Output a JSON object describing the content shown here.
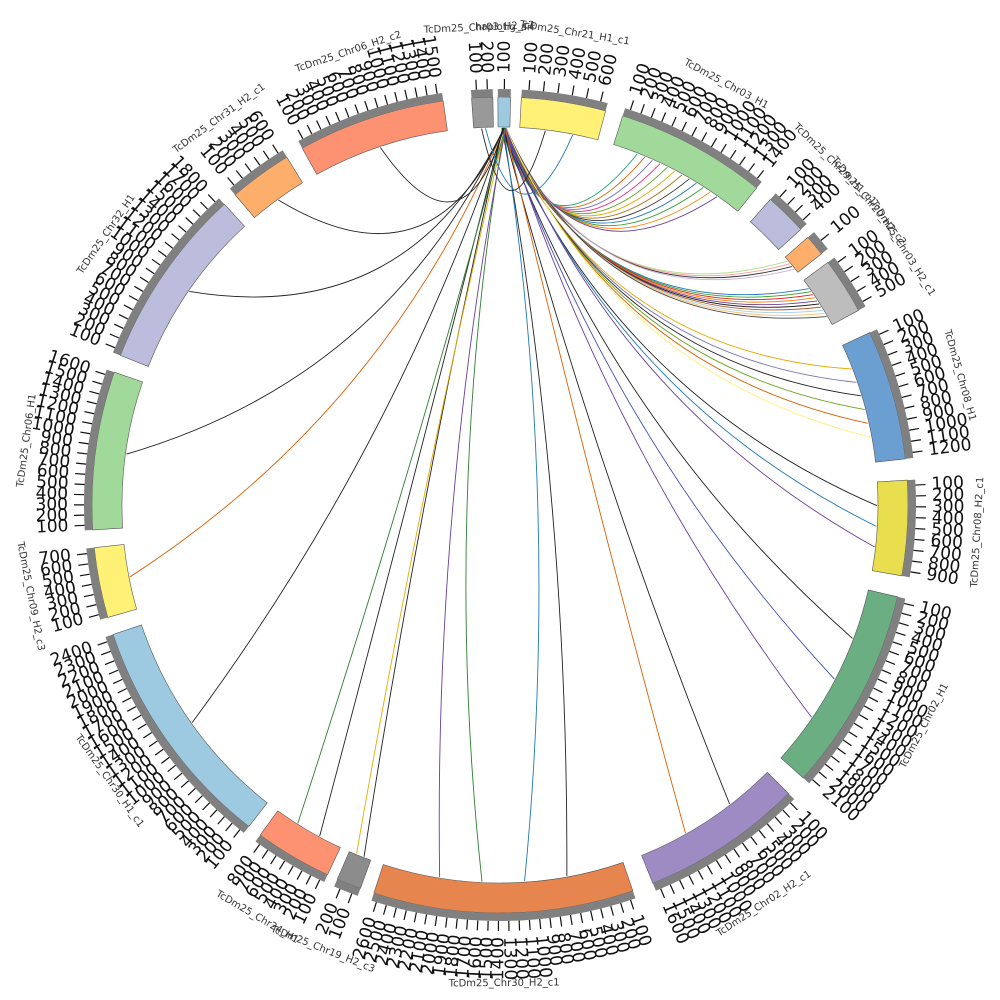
{
  "diagram": {
    "type": "circos",
    "segments": [
      {
        "id": "chr03_h2_c2",
        "label": "TcDm25_Chr03_H2_c2",
        "color": "#999999",
        "ticks": [
          "100",
          "200"
        ]
      },
      {
        "id": "hap_arr",
        "label": "haplotig_arr",
        "color": "#9ECAE1",
        "ticks": [
          "100"
        ]
      },
      {
        "id": "chr21_h1_c1",
        "label": "TcDm25_Chr21_H1_c1",
        "color": "#FFF176",
        "ticks": [
          "100",
          "200",
          "300",
          "400",
          "500",
          "600"
        ]
      },
      {
        "id": "chr03_h1",
        "label": "TcDm25_Chr03_H1",
        "color": "#A1D99B",
        "ticks": [
          "100",
          "200",
          "300",
          "400",
          "500",
          "600",
          "700",
          "800",
          "900",
          "1000",
          "1100",
          "1200",
          "1300",
          "1400"
        ]
      },
      {
        "id": "chr29_h1_c1",
        "label": "TcDm25_Chr29_H1_c1",
        "color": "#BCBDDC",
        "ticks": [
          "100",
          "200",
          "300",
          "400"
        ]
      },
      {
        "id": "chr20_h2_c2",
        "label": "TcDm25_Chr20_H2_c2",
        "color": "#FDAE6B",
        "ticks": [
          "100"
        ]
      },
      {
        "id": "chr03_h2_c1",
        "label": "TcDm25_Chr03_H2_c1",
        "color": "#BDBDBD",
        "ticks": [
          "100",
          "200",
          "300",
          "400",
          "500"
        ]
      },
      {
        "id": "chr08_h1",
        "label": "TcDm25_Chr08_H1",
        "color": "#6B9FD1",
        "ticks": [
          "100",
          "200",
          "300",
          "400",
          "500",
          "600",
          "700",
          "800",
          "900",
          "1000",
          "1100",
          "1200"
        ]
      },
      {
        "id": "chr08_h2_c1",
        "label": "TcDm25_Chr08_H2_c1",
        "color": "#E8DE4E",
        "ticks": [
          "100",
          "200",
          "300",
          "400",
          "500",
          "600",
          "700",
          "800",
          "900"
        ]
      },
      {
        "id": "chr02_h1",
        "label": "TcDm25_Chr02_H1",
        "color": "#6BAE82",
        "ticks": [
          "100",
          "200",
          "300",
          "400",
          "500",
          "600",
          "700",
          "800",
          "900",
          "1000",
          "1100",
          "1200",
          "1300",
          "1400",
          "1500",
          "1600",
          "1700",
          "1800",
          "1900",
          "2000",
          "2100"
        ]
      },
      {
        "id": "chr02_h2_c1",
        "label": "TcDm25_Chr02_H2_c1",
        "color": "#9E8BC4",
        "ticks": [
          "100",
          "200",
          "300",
          "400",
          "500",
          "600",
          "700",
          "800",
          "900",
          "1000",
          "1100",
          "1200",
          "1300",
          "1400",
          "1500",
          "1600"
        ]
      },
      {
        "id": "chr30_h2_c1",
        "label": "TcDm25_Chr30_H2_c1",
        "color": "#E6854E",
        "ticks": [
          "100",
          "200",
          "300",
          "400",
          "500",
          "600",
          "700",
          "800",
          "900",
          "1000",
          "1100",
          "1200",
          "1300",
          "1400",
          "1500",
          "1600",
          "1700",
          "1800",
          "1900",
          "2000",
          "2100",
          "2200",
          "2300",
          "2400",
          "2500",
          "2600"
        ]
      },
      {
        "id": "chr19_h2_c3",
        "label": "TcDm25_Chr19_H2_c3",
        "color": "#8C8C8C",
        "ticks": [
          "100",
          "200"
        ]
      },
      {
        "id": "chr24_h1",
        "label": "TcDm25_Chr24_H1",
        "color": "#FC9272",
        "ticks": [
          "100",
          "200",
          "300",
          "400",
          "500",
          "600",
          "700",
          "800"
        ]
      },
      {
        "id": "chr30_h1_c1",
        "label": "TcDm25_Chr30_H1_c1",
        "color": "#9ECAE1",
        "ticks": [
          "100",
          "200",
          "300",
          "400",
          "500",
          "600",
          "700",
          "800",
          "900",
          "1000",
          "1100",
          "1200",
          "1300",
          "1400",
          "1500",
          "1600",
          "1700",
          "1800",
          "1900",
          "2000",
          "2100",
          "2200",
          "2300",
          "2400"
        ]
      },
      {
        "id": "chr09_h2_c3",
        "label": "TcDm25_Chr09_H2_c3",
        "color": "#FFF176",
        "ticks": [
          "100",
          "200",
          "300",
          "400",
          "500",
          "600",
          "700"
        ]
      },
      {
        "id": "chr06_h1",
        "label": "TcDm25_Chr06_H1",
        "color": "#A1D99B",
        "ticks": [
          "100",
          "200",
          "300",
          "400",
          "500",
          "600",
          "700",
          "800",
          "900",
          "1000",
          "1100",
          "1200",
          "1300",
          "1400",
          "1500",
          "1600"
        ]
      },
      {
        "id": "chr32_h1",
        "label": "TcDm25_Chr32_H1",
        "color": "#BCBDDC",
        "ticks": [
          "100",
          "200",
          "300",
          "400",
          "500",
          "600",
          "700",
          "800",
          "900",
          "1000",
          "1100",
          "1200",
          "1300",
          "1400",
          "1500",
          "1600",
          "1700",
          "1800"
        ]
      },
      {
        "id": "chr31_h2_c1",
        "label": "TcDm25_Chr31_H2_c1",
        "color": "#FDAE6B",
        "ticks": [
          "100",
          "200",
          "300",
          "400",
          "500",
          "600"
        ]
      },
      {
        "id": "chr06_h2_c2",
        "label": "TcDm25_Chr06_H2_c2",
        "color": "#FC9272",
        "ticks": [
          "100",
          "200",
          "300",
          "400",
          "500",
          "600",
          "700",
          "800",
          "900",
          "1000",
          "1100",
          "1200",
          "1300",
          "1400",
          "1500"
        ]
      }
    ],
    "links": [
      {
        "from": "hap_arr",
        "to": "chr03_h1",
        "count": 12,
        "colors": [
          "#1b9e77",
          "#d95f02",
          "#7570b3",
          "#e7298a",
          "#66a61e",
          "#e6ab02",
          "#a6761d",
          "#333333",
          "#1f78b4",
          "#33a02c",
          "#ff7f00",
          "#6a3d9a"
        ]
      },
      {
        "from": "hap_arr",
        "to": "chr20_h2_c2",
        "count": 4,
        "colors": [
          "#b2df8a",
          "#fb9a99",
          "#333333",
          "#cab2d6"
        ]
      },
      {
        "from": "hap_arr",
        "to": "chr03_h2_c1",
        "count": 10,
        "colors": [
          "#1f78b4",
          "#33a02c",
          "#e31a1c",
          "#ff7f00",
          "#6a3d9a",
          "#222222",
          "#b15928",
          "#a6cee3",
          "#fdbf6f",
          "#444444"
        ]
      },
      {
        "from": "hap_arr",
        "to": "chr08_h1",
        "count": 6,
        "colors": [
          "#e6ab02",
          "#7570b3",
          "#222222",
          "#66a61e",
          "#d95f02",
          "#fff176"
        ]
      },
      {
        "from": "hap_arr",
        "to": "chr08_h2_c1",
        "count": 3,
        "colors": [
          "#222222",
          "#1f78b4",
          "#6a3d9a"
        ]
      },
      {
        "from": "hap_arr",
        "to": "chr02_h1",
        "count": 3,
        "colors": [
          "#222222",
          "#3f51b5",
          "#6a3d9a"
        ]
      },
      {
        "from": "hap_arr",
        "to": "chr02_h2_c1",
        "count": 2,
        "colors": [
          "#222222",
          "#d95f02"
        ]
      },
      {
        "from": "hap_arr",
        "to": "chr30_h2_c1",
        "count": 4,
        "colors": [
          "#222222",
          "#1f78b4",
          "#2e7d32",
          "#6a3d9a"
        ]
      },
      {
        "from": "hap_arr",
        "to": "chr19_h2_c3",
        "count": 2,
        "colors": [
          "#222222",
          "#e6ab02"
        ]
      },
      {
        "from": "hap_arr",
        "to": "chr24_h1",
        "count": 2,
        "colors": [
          "#222222",
          "#2e7d32"
        ]
      },
      {
        "from": "hap_arr",
        "to": "chr30_h1_c1",
        "count": 1,
        "colors": [
          "#222222"
        ]
      },
      {
        "from": "hap_arr",
        "to": "chr09_h2_c3",
        "count": 1,
        "colors": [
          "#d95f02"
        ]
      },
      {
        "from": "hap_arr",
        "to": "chr06_h1",
        "count": 1,
        "colors": [
          "#222222"
        ]
      },
      {
        "from": "hap_arr",
        "to": "chr32_h1",
        "count": 1,
        "colors": [
          "#222222"
        ]
      },
      {
        "from": "hap_arr",
        "to": "chr31_h2_c1",
        "count": 1,
        "colors": [
          "#222222"
        ]
      },
      {
        "from": "hap_arr",
        "to": "chr06_h2_c2",
        "count": 1,
        "colors": [
          "#222222"
        ]
      },
      {
        "from": "chr03_h2_c2",
        "to": "chr21_h1_c1",
        "count": 2,
        "colors": [
          "#222222",
          "#1f78b4"
        ]
      }
    ]
  }
}
